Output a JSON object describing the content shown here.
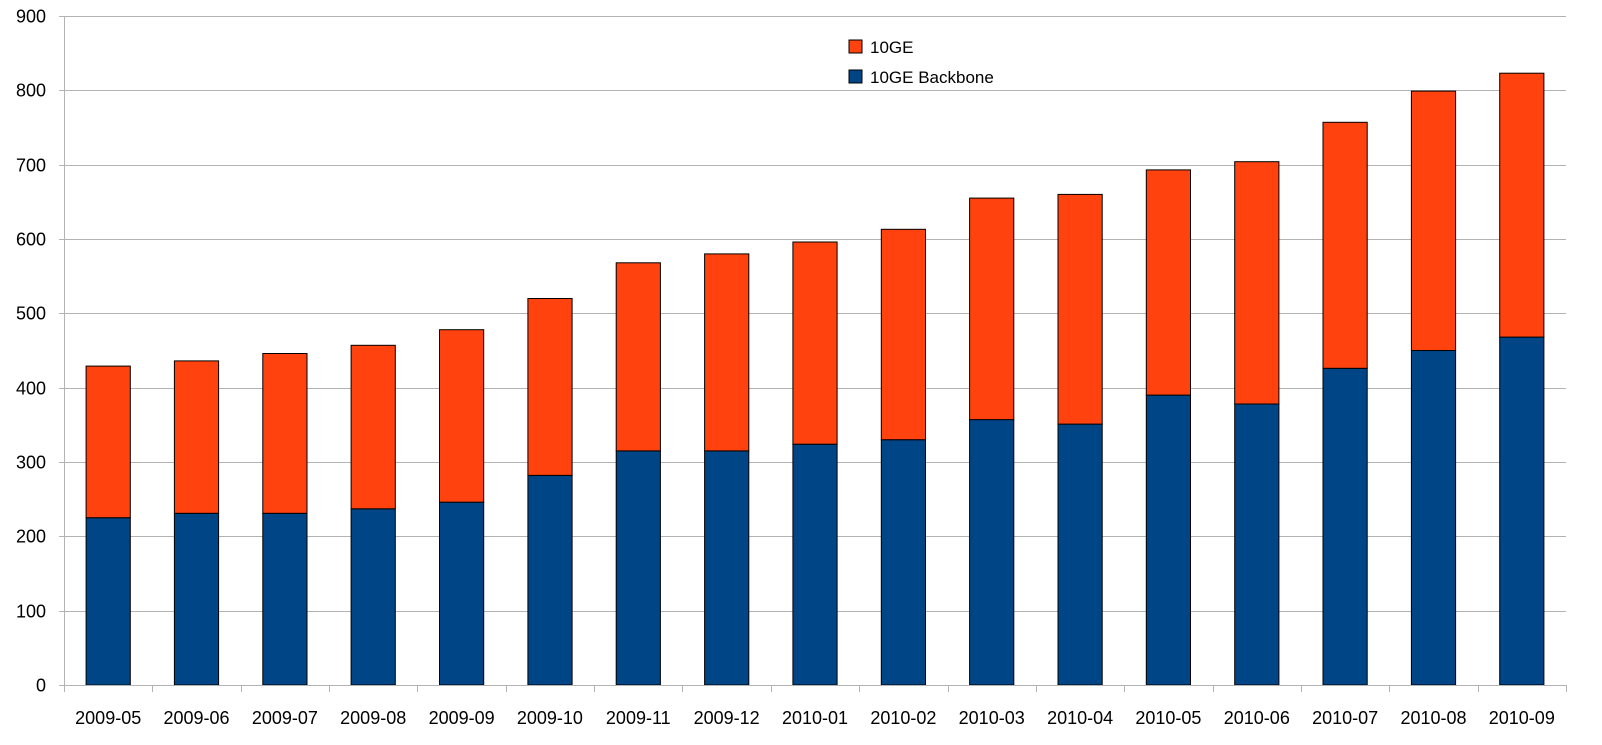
{
  "chart_data": {
    "type": "bar",
    "stacked": true,
    "title": "",
    "xlabel": "",
    "ylabel": "",
    "ylim": [
      0,
      900
    ],
    "yticks": [
      0,
      100,
      200,
      300,
      400,
      500,
      600,
      700,
      800,
      900
    ],
    "grid": true,
    "legend_position": "top-center",
    "categories": [
      "2009-05",
      "2009-06",
      "2009-07",
      "2009-08",
      "2009-09",
      "2009-10",
      "2009-11",
      "2009-12",
      "2010-01",
      "2010-02",
      "2010-03",
      "2010-04",
      "2010-05",
      "2010-06",
      "2010-07",
      "2010-08",
      "2010-09"
    ],
    "series": [
      {
        "name": "10GE Backbone",
        "color": "#004586",
        "values": [
          225,
          231,
          231,
          237,
          246,
          282,
          315,
          315,
          324,
          330,
          357,
          351,
          390,
          378,
          426,
          450,
          468
        ]
      },
      {
        "name": "10GE",
        "color": "#ff420e",
        "values": [
          204,
          205,
          215,
          220,
          232,
          238,
          253,
          265,
          272,
          283,
          298,
          309,
          303,
          326,
          331,
          349,
          355
        ]
      }
    ],
    "legend": [
      "10GE",
      "10GE Backbone"
    ]
  }
}
